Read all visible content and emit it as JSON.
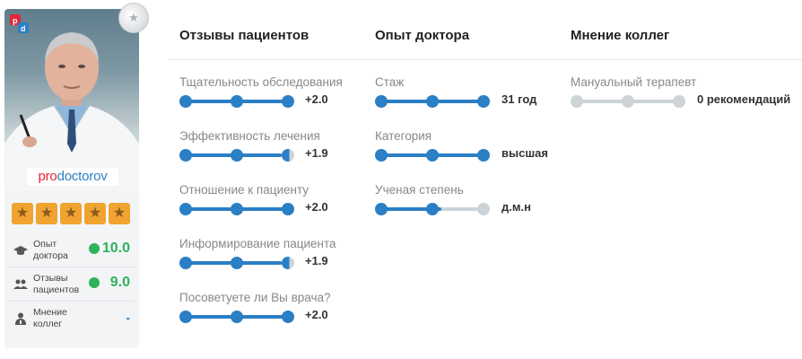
{
  "profile": {
    "brand_pro": "pro",
    "brand_doc": "doctorov",
    "logo_letters": "pd",
    "rating_stars": 5,
    "metrics": [
      {
        "label": "Опыт доктора",
        "value": "10.0"
      },
      {
        "label": "Отзывы пациентов",
        "value": "9.0"
      },
      {
        "label": "Мнение коллег",
        "value": "-"
      }
    ]
  },
  "columns": {
    "reviews": {
      "title": "Отзывы пациентов",
      "items": [
        {
          "label": "Тщательность обследования",
          "value": "+2.0",
          "level": 1.0
        },
        {
          "label": "Эффективность лечения",
          "value": "+1.9",
          "level": 0.95
        },
        {
          "label": "Отношение к пациенту",
          "value": "+2.0",
          "level": 1.0
        },
        {
          "label": "Информирование пациента",
          "value": "+1.9",
          "level": 0.95
        },
        {
          "label": "Посоветуете ли Вы врача?",
          "value": "+2.0",
          "level": 1.0
        }
      ]
    },
    "experience": {
      "title": "Опыт доктора",
      "items": [
        {
          "label": "Стаж",
          "value": "31 год",
          "level": 1.0
        },
        {
          "label": "Категория",
          "value": "высшая",
          "level": 1.0
        },
        {
          "label": "Ученая степень",
          "value": "д.м.н",
          "level": 0.6
        }
      ]
    },
    "colleagues": {
      "title": "Мнение коллег",
      "items": [
        {
          "label": "Мануальный терапевт",
          "value": "0 рекомендаций",
          "level": 0
        }
      ]
    }
  },
  "colors": {
    "accent_blue": "#2b7fc4",
    "inactive_gray": "#cdd4d8",
    "good_green": "#2db35b",
    "star_orange": "#f0a331"
  }
}
